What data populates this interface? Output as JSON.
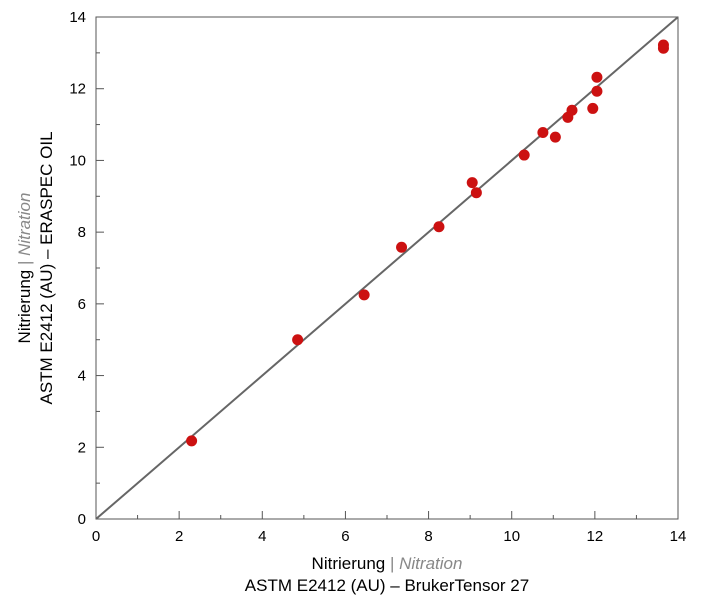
{
  "chart_data": {
    "type": "scatter",
    "title": "",
    "xlabel": {
      "line1_main": "Nitrierung",
      "line1_sep": " | ",
      "line1_alt": "Nitration",
      "line2": "ASTM E2412 (AU) – BrukerTensor 27"
    },
    "ylabel": {
      "line1_main": "Nitrierung",
      "line1_sep": " | ",
      "line1_alt": "Nitration",
      "line2": "ASTM E2412 (AU) – ERASPEC OIL"
    },
    "xlim": [
      0,
      14
    ],
    "ylim": [
      0,
      14
    ],
    "xticks": [
      0,
      2,
      4,
      6,
      8,
      10,
      12,
      14
    ],
    "yticks": [
      0,
      2,
      4,
      6,
      8,
      10,
      12,
      14
    ],
    "xtick_labels": [
      "0",
      "2",
      "4",
      "6",
      "8",
      "10",
      "12",
      "14"
    ],
    "ytick_labels": [
      "0",
      "2",
      "4",
      "6",
      "8",
      "10",
      "12",
      "14"
    ],
    "minor_ticks": 1,
    "grid": false,
    "reference_line": {
      "from": [
        0,
        0
      ],
      "to": [
        14,
        14
      ],
      "color": "#666666"
    },
    "point_color": "#cc1111",
    "points": [
      {
        "x": 2.3,
        "y": 2.18
      },
      {
        "x": 4.85,
        "y": 5.0
      },
      {
        "x": 6.45,
        "y": 6.25
      },
      {
        "x": 7.35,
        "y": 7.58
      },
      {
        "x": 8.25,
        "y": 8.15
      },
      {
        "x": 9.05,
        "y": 9.38
      },
      {
        "x": 9.15,
        "y": 9.1
      },
      {
        "x": 10.3,
        "y": 10.15
      },
      {
        "x": 10.75,
        "y": 10.78
      },
      {
        "x": 11.05,
        "y": 10.65
      },
      {
        "x": 11.35,
        "y": 11.2
      },
      {
        "x": 11.45,
        "y": 11.4
      },
      {
        "x": 11.95,
        "y": 11.45
      },
      {
        "x": 12.05,
        "y": 11.93
      },
      {
        "x": 12.05,
        "y": 12.32
      },
      {
        "x": 13.65,
        "y": 13.13
      },
      {
        "x": 13.65,
        "y": 13.22
      }
    ]
  }
}
